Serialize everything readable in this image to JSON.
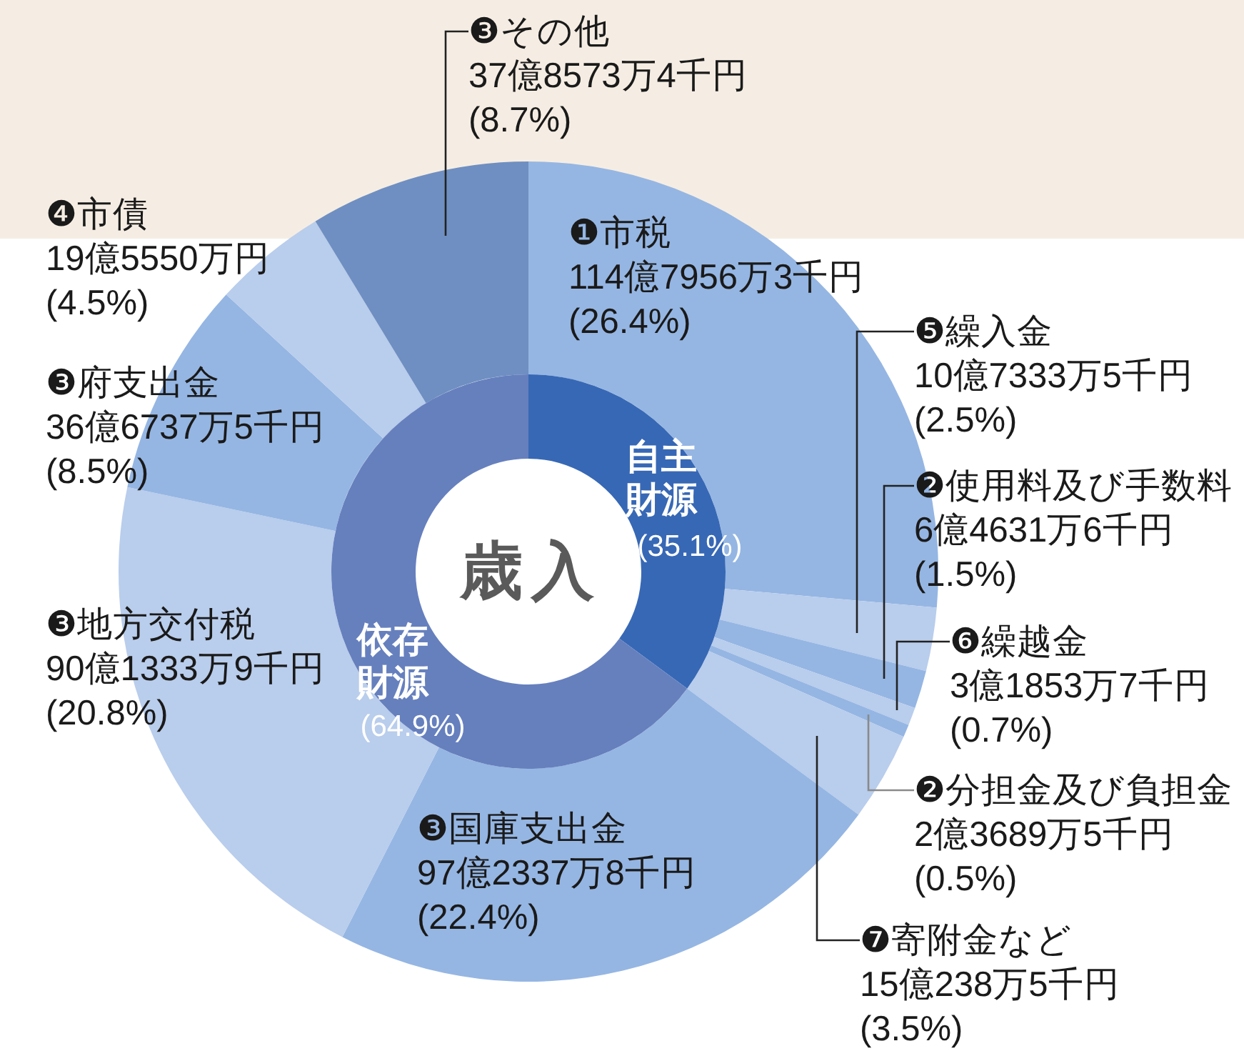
{
  "chart_data": [
    {
      "type": "donut",
      "title": "歳入",
      "categories": [
        "自主財源",
        "依存財源"
      ],
      "values": [
        35.1,
        64.9
      ],
      "value_labels": [
        "(35.1%)",
        "(64.9%)"
      ],
      "colors": [
        "#3768b5",
        "#6680be"
      ]
    },
    {
      "type": "donut",
      "categories": [
        "❶市税",
        "❺繰入金",
        "❷使用料及び手数料",
        "❻繰越金",
        "❷分担金及び負担金",
        "❼寄附金など",
        "❸国庫支出金",
        "❸地方交付税",
        "❸府支出金",
        "❹市債",
        "❸その他"
      ],
      "values": [
        26.4,
        2.5,
        1.5,
        0.7,
        0.5,
        3.5,
        22.4,
        20.8,
        8.5,
        4.5,
        8.7
      ],
      "value_labels": [
        "114億7956万3千円\n(26.4%)",
        "10億7333万5千円\n(2.5%)",
        "6億4631万6千円\n(1.5%)",
        "3億1853万7千円\n(0.7%)",
        "2億3689万5千円\n(0.5%)",
        "15億238万5千円\n(3.5%)",
        "97億2337万8千円\n(22.4%)",
        "90億1333万9千円\n(20.8%)",
        "36億6737万5千円\n(8.5%)",
        "19億5550万円\n(4.5%)",
        "37億8573万4千円\n(8.7%)"
      ],
      "colors": [
        "#95b6e3",
        "#b9cdec",
        "#95b6e3",
        "#b9cdec",
        "#95b6e3",
        "#b9cdec",
        "#95b6e3",
        "#b9cdec",
        "#95b6e3",
        "#b9cdec",
        "#6f8fc2"
      ]
    }
  ]
}
